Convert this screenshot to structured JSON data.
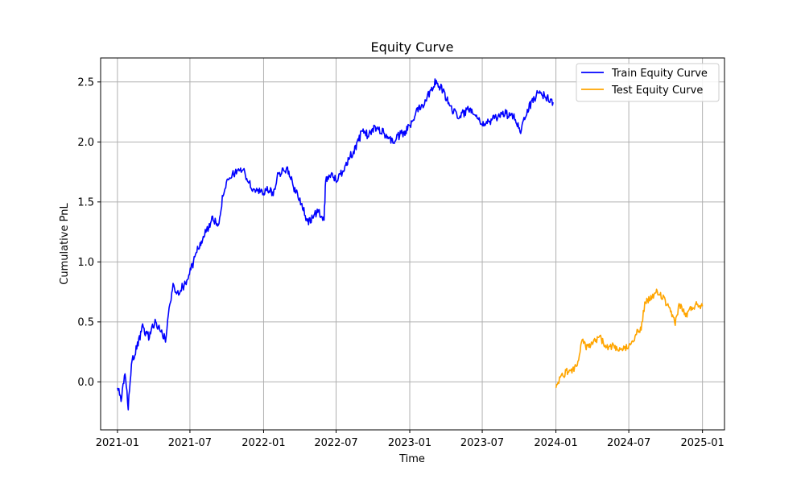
{
  "chart_data": {
    "type": "line",
    "title": "Equity Curve",
    "xlabel": "Time",
    "ylabel": "Cumulative PnL",
    "x_type": "date",
    "xlim": [
      "2020-11-20",
      "2025-02-25"
    ],
    "ylim": [
      -0.4,
      2.7
    ],
    "x_ticks": [
      "2021-01",
      "2021-07",
      "2022-01",
      "2022-07",
      "2023-01",
      "2023-07",
      "2024-01",
      "2024-07",
      "2025-01"
    ],
    "y_ticks": [
      0.0,
      0.5,
      1.0,
      1.5,
      2.0,
      2.5
    ],
    "y_tick_labels": [
      "0.0",
      "0.5",
      "1.0",
      "1.5",
      "2.0",
      "2.5"
    ],
    "grid": true,
    "legend_position": "top-right",
    "series": [
      {
        "name": "Train Equity Curve",
        "color": "#0000ff",
        "points": [
          [
            "2021-01-01",
            -0.05
          ],
          [
            "2021-01-10",
            -0.15
          ],
          [
            "2021-01-20",
            0.05
          ],
          [
            "2021-01-28",
            -0.2
          ],
          [
            "2021-02-05",
            0.15
          ],
          [
            "2021-02-20",
            0.3
          ],
          [
            "2021-03-05",
            0.45
          ],
          [
            "2021-03-20",
            0.38
          ],
          [
            "2021-04-05",
            0.5
          ],
          [
            "2021-04-20",
            0.42
          ],
          [
            "2021-05-01",
            0.35
          ],
          [
            "2021-05-10",
            0.6
          ],
          [
            "2021-05-20",
            0.8
          ],
          [
            "2021-06-01",
            0.75
          ],
          [
            "2021-06-20",
            0.82
          ],
          [
            "2021-07-05",
            0.95
          ],
          [
            "2021-07-20",
            1.1
          ],
          [
            "2021-08-05",
            1.22
          ],
          [
            "2021-08-25",
            1.35
          ],
          [
            "2021-09-10",
            1.32
          ],
          [
            "2021-09-25",
            1.62
          ],
          [
            "2021-10-15",
            1.72
          ],
          [
            "2021-11-01",
            1.78
          ],
          [
            "2021-11-15",
            1.74
          ],
          [
            "2021-12-01",
            1.62
          ],
          [
            "2021-12-20",
            1.58
          ],
          [
            "2022-01-10",
            1.6
          ],
          [
            "2022-01-25",
            1.57
          ],
          [
            "2022-02-05",
            1.72
          ],
          [
            "2022-02-20",
            1.78
          ],
          [
            "2022-03-05",
            1.75
          ],
          [
            "2022-03-20",
            1.6
          ],
          [
            "2022-04-05",
            1.5
          ],
          [
            "2022-04-20",
            1.32
          ],
          [
            "2022-05-05",
            1.38
          ],
          [
            "2022-05-20",
            1.42
          ],
          [
            "2022-06-01",
            1.35
          ],
          [
            "2022-06-05",
            1.7
          ],
          [
            "2022-06-20",
            1.72
          ],
          [
            "2022-07-05",
            1.68
          ],
          [
            "2022-07-20",
            1.78
          ],
          [
            "2022-08-05",
            1.88
          ],
          [
            "2022-08-20",
            1.95
          ],
          [
            "2022-09-05",
            2.1
          ],
          [
            "2022-09-20",
            2.05
          ],
          [
            "2022-10-05",
            2.12
          ],
          [
            "2022-10-20",
            2.1
          ],
          [
            "2022-11-05",
            2.05
          ],
          [
            "2022-11-20",
            2.0
          ],
          [
            "2022-12-05",
            2.05
          ],
          [
            "2022-12-20",
            2.08
          ],
          [
            "2023-01-05",
            2.15
          ],
          [
            "2023-01-20",
            2.28
          ],
          [
            "2023-02-05",
            2.32
          ],
          [
            "2023-02-20",
            2.42
          ],
          [
            "2023-03-05",
            2.5
          ],
          [
            "2023-03-20",
            2.45
          ],
          [
            "2023-04-05",
            2.35
          ],
          [
            "2023-04-20",
            2.25
          ],
          [
            "2023-05-05",
            2.22
          ],
          [
            "2023-05-20",
            2.25
          ],
          [
            "2023-06-05",
            2.28
          ],
          [
            "2023-06-20",
            2.2
          ],
          [
            "2023-07-05",
            2.15
          ],
          [
            "2023-07-20",
            2.17
          ],
          [
            "2023-08-05",
            2.2
          ],
          [
            "2023-08-20",
            2.25
          ],
          [
            "2023-09-05",
            2.22
          ],
          [
            "2023-09-20",
            2.2
          ],
          [
            "2023-10-05",
            2.1
          ],
          [
            "2023-10-20",
            2.25
          ],
          [
            "2023-11-05",
            2.35
          ],
          [
            "2023-11-20",
            2.42
          ],
          [
            "2023-12-05",
            2.38
          ],
          [
            "2023-12-25",
            2.33
          ]
        ]
      },
      {
        "name": "Test Equity Curve",
        "color": "#ffa500",
        "points": [
          [
            "2024-01-01",
            -0.05
          ],
          [
            "2024-01-10",
            0.02
          ],
          [
            "2024-01-25",
            0.08
          ],
          [
            "2024-02-10",
            0.1
          ],
          [
            "2024-02-25",
            0.15
          ],
          [
            "2024-03-05",
            0.35
          ],
          [
            "2024-03-20",
            0.28
          ],
          [
            "2024-04-05",
            0.33
          ],
          [
            "2024-04-20",
            0.38
          ],
          [
            "2024-05-05",
            0.28
          ],
          [
            "2024-05-20",
            0.3
          ],
          [
            "2024-06-05",
            0.25
          ],
          [
            "2024-06-20",
            0.28
          ],
          [
            "2024-07-05",
            0.32
          ],
          [
            "2024-07-20",
            0.4
          ],
          [
            "2024-08-01",
            0.45
          ],
          [
            "2024-08-10",
            0.65
          ],
          [
            "2024-08-25",
            0.7
          ],
          [
            "2024-09-10",
            0.75
          ],
          [
            "2024-09-25",
            0.7
          ],
          [
            "2024-10-10",
            0.6
          ],
          [
            "2024-10-25",
            0.5
          ],
          [
            "2024-11-05",
            0.65
          ],
          [
            "2024-11-20",
            0.55
          ],
          [
            "2024-12-05",
            0.62
          ],
          [
            "2024-12-20",
            0.65
          ],
          [
            "2025-01-01",
            0.63
          ]
        ]
      }
    ]
  }
}
